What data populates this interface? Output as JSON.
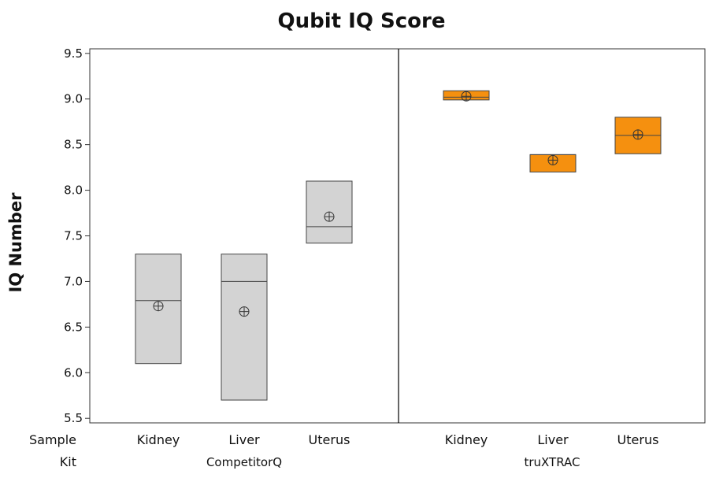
{
  "chart_data": {
    "type": "boxplot",
    "title": "Qubit IQ Score",
    "ylabel": "IQ Number",
    "ylim": [
      5.45,
      9.55
    ],
    "yticks": [
      "5.5",
      "6.0",
      "6.5",
      "7.0",
      "7.5",
      "8.0",
      "8.5",
      "9.0",
      "9.5"
    ],
    "row_labels": {
      "sample": "Sample",
      "kit": "Kit"
    },
    "panels": [
      {
        "kit": "CompetitorQ",
        "color": "#d3d3d3",
        "boxes": [
          {
            "sample": "Kidney",
            "q1": 6.1,
            "median": 6.79,
            "q3": 7.3,
            "mean": 6.73
          },
          {
            "sample": "Liver",
            "q1": 5.7,
            "median": 7.0,
            "q3": 7.3,
            "mean": 6.67
          },
          {
            "sample": "Uterus",
            "q1": 7.42,
            "median": 7.6,
            "q3": 8.1,
            "mean": 7.71
          }
        ]
      },
      {
        "kit": "truXTRAC",
        "color": "#f5900f",
        "boxes": [
          {
            "sample": "Kidney",
            "q1": 8.99,
            "median": 9.02,
            "q3": 9.09,
            "mean": 9.03
          },
          {
            "sample": "Liver",
            "q1": 8.2,
            "median": 8.39,
            "q3": 8.39,
            "mean": 8.33
          },
          {
            "sample": "Uterus",
            "q1": 8.4,
            "median": 8.6,
            "q3": 8.8,
            "mean": 8.61
          }
        ]
      }
    ]
  }
}
